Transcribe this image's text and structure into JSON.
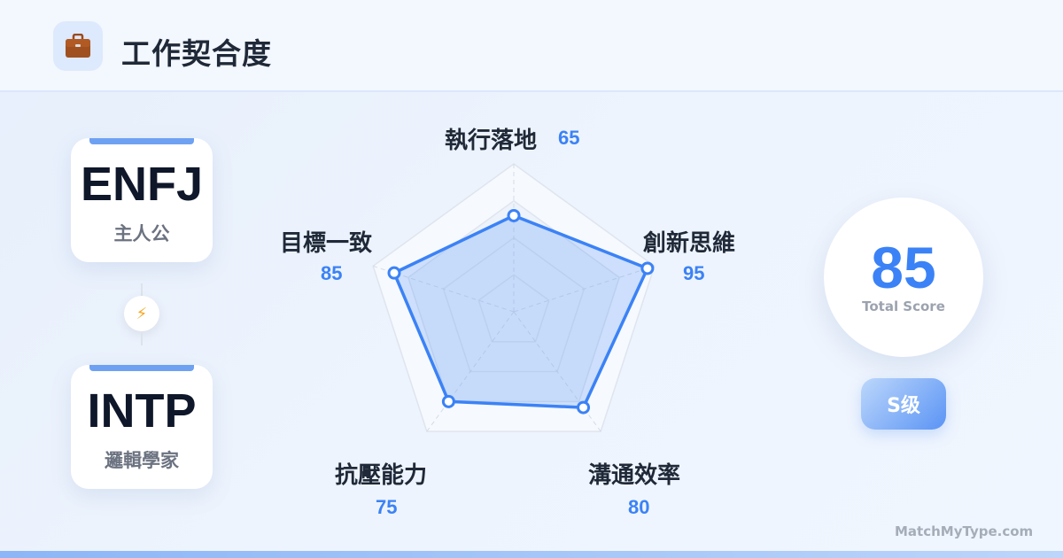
{
  "header": {
    "icon": "briefcase-icon",
    "title": "工作契合度"
  },
  "types": [
    {
      "code": "ENFJ",
      "name": "主人公"
    },
    {
      "code": "INTP",
      "name": "邏輯學家"
    }
  ],
  "connector_icon": "lightning-icon",
  "chart_data": {
    "type": "radar",
    "categories": [
      "執行落地",
      "創新思維",
      "溝通效率",
      "抗壓能力",
      "目標一致"
    ],
    "values": [
      65,
      95,
      80,
      75,
      85
    ],
    "value_labels": [
      "65",
      "95",
      "80",
      "75",
      "85"
    ],
    "range": [
      0,
      100
    ],
    "color": "#3b82f6"
  },
  "score": {
    "value": "85",
    "label": "Total Score"
  },
  "grade": "S级",
  "footer": {
    "site": "MatchMyType.com"
  }
}
